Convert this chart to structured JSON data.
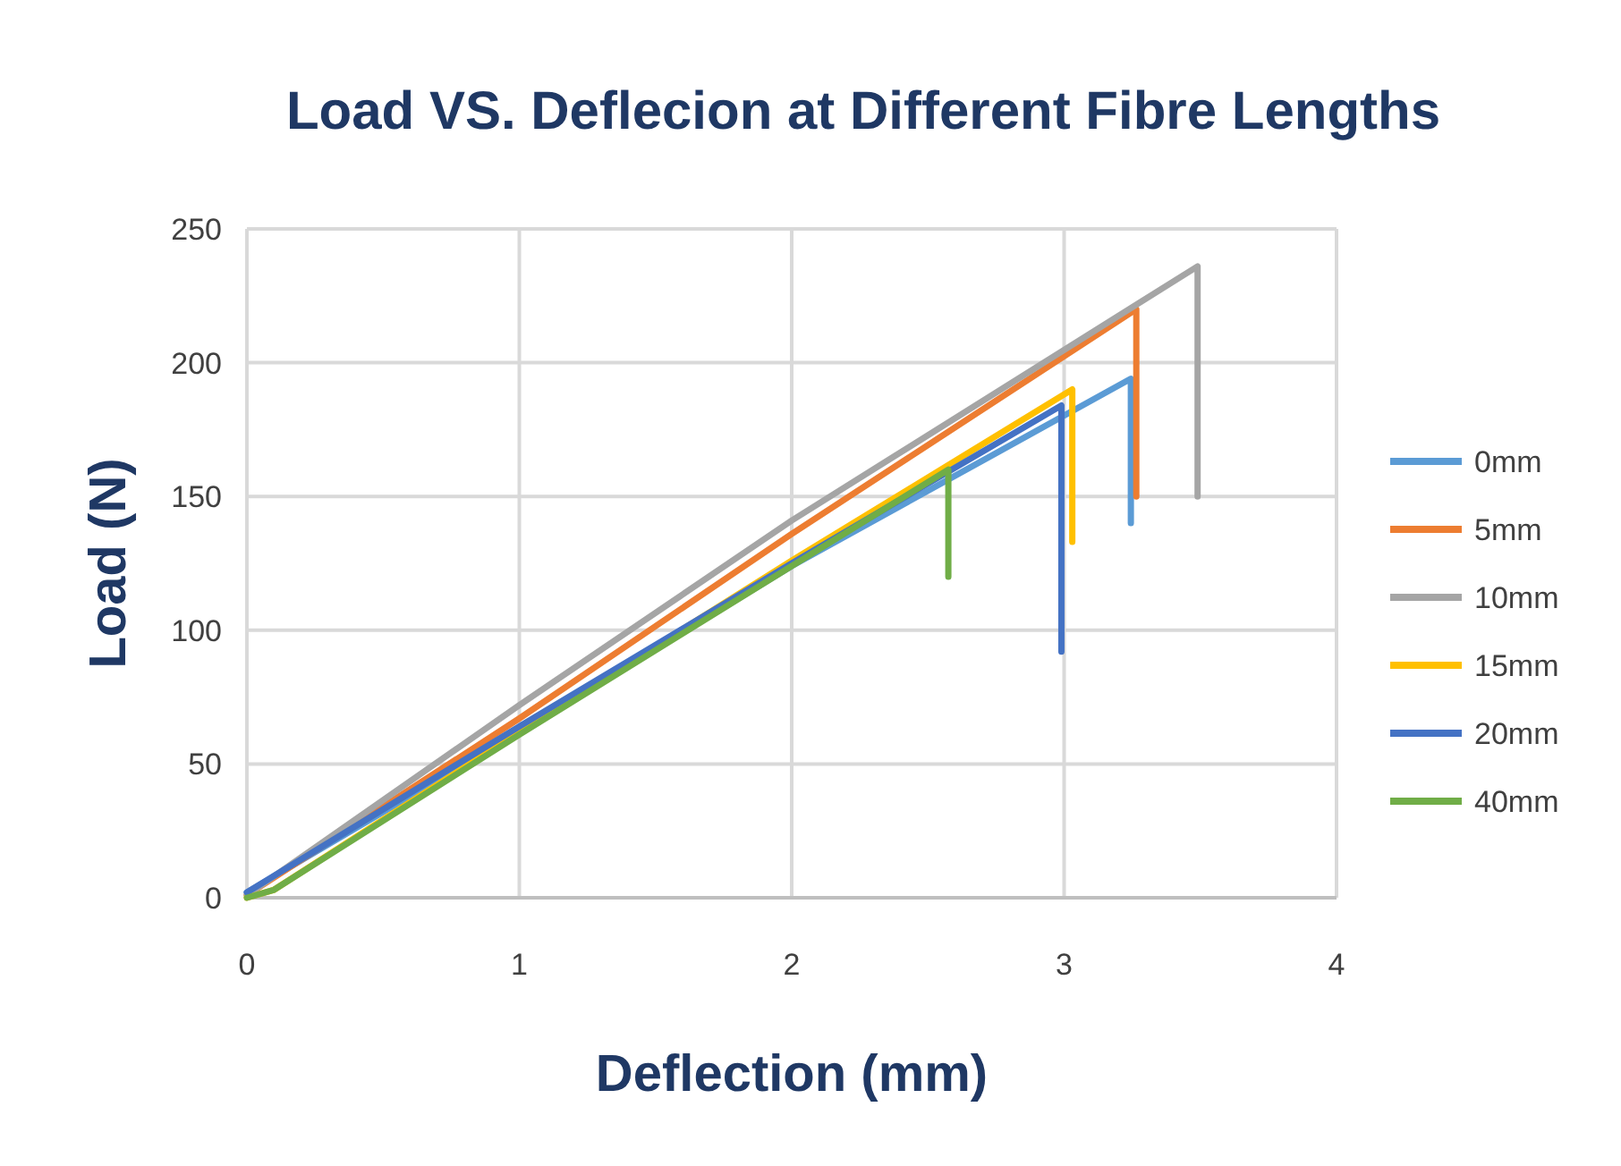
{
  "chart_data": {
    "type": "line",
    "title": "Load VS. Deflecion at Different Fibre Lengths",
    "xlabel": "Deflection (mm)",
    "ylabel": "Load (N)",
    "xlim": [
      0,
      4
    ],
    "xticks": [
      0,
      1,
      2,
      3,
      4
    ],
    "ylim": [
      0,
      250
    ],
    "yticks": [
      0,
      50,
      100,
      150,
      200,
      250
    ],
    "grid": true,
    "legend": "right",
    "marker": "none",
    "line_style": "solid",
    "series": [
      {
        "name": "0mm",
        "color": "#5b9bd5",
        "x": [
          0,
          1,
          2,
          3.245,
          3.245
        ],
        "values": [
          2,
          62,
          124,
          194,
          140
        ]
      },
      {
        "name": "5mm",
        "color": "#ed7d31",
        "x": [
          0,
          1,
          2,
          3.265,
          3.265
        ],
        "values": [
          1,
          67,
          136,
          220,
          150
        ]
      },
      {
        "name": "10mm",
        "color": "#a5a5a5",
        "x": [
          0,
          1,
          2,
          3.49,
          3.49
        ],
        "values": [
          1,
          72,
          141,
          236,
          150
        ]
      },
      {
        "name": "15mm",
        "color": "#ffc000",
        "x": [
          0,
          0.1,
          1,
          2,
          3.03,
          3.03
        ],
        "values": [
          0,
          3,
          62,
          126,
          190,
          133
        ]
      },
      {
        "name": "20mm",
        "color": "#4472c4",
        "x": [
          0,
          1,
          2,
          2.99,
          2.99
        ],
        "values": [
          2,
          64,
          125,
          184,
          92
        ]
      },
      {
        "name": "40mm",
        "color": "#70ad47",
        "x": [
          0,
          0.1,
          1,
          2,
          2.575,
          2.575
        ],
        "values": [
          0,
          3,
          61,
          124,
          160,
          120
        ]
      }
    ]
  }
}
